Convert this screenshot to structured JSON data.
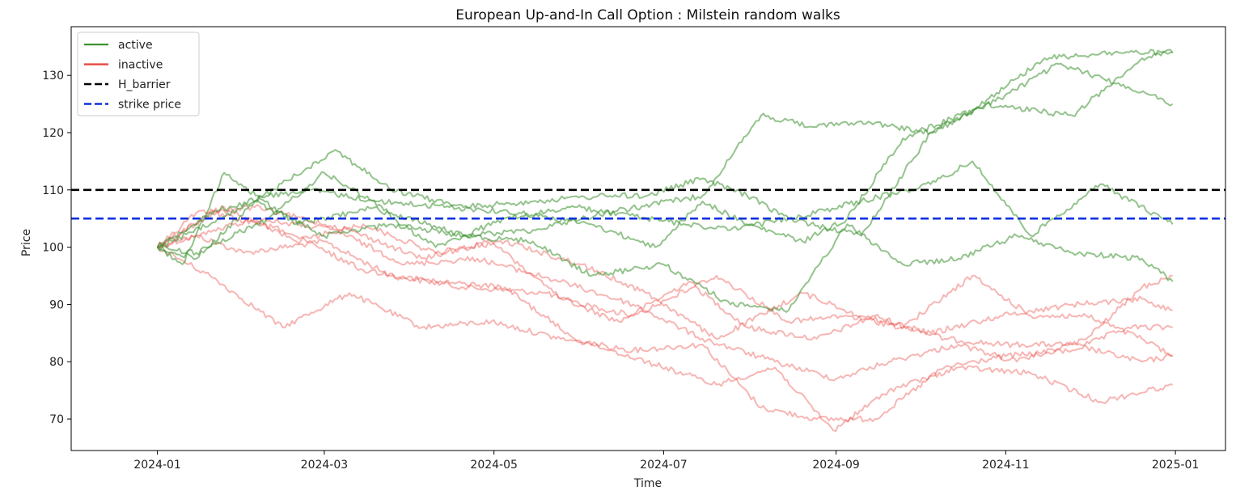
{
  "chart_data": {
    "type": "line",
    "title": "European Up-and-In Call Option : Milstein random walks",
    "xlabel": "Time",
    "ylabel": "Price",
    "xlim": [
      "2023-12-01",
      "2025-01-19"
    ],
    "ylim": [
      64.5,
      138.5
    ],
    "x_ticks": [
      "2024-01",
      "2024-03",
      "2024-05",
      "2024-07",
      "2024-09",
      "2024-11",
      "2025-01"
    ],
    "y_ticks": [
      70,
      80,
      90,
      100,
      110,
      120,
      130
    ],
    "grid": false,
    "legend_position": "top-left",
    "colors": {
      "active": "#3d9130",
      "inactive": "#e8403a",
      "barrier": "#000000",
      "strike": "#0a30e0"
    },
    "legend": [
      {
        "label": "active",
        "color": "#3d9130",
        "dash": false
      },
      {
        "label": "inactive",
        "color": "#e8403a",
        "dash": false
      },
      {
        "label": "H_barrier",
        "color": "#000000",
        "dash": true
      },
      {
        "label": "strike price",
        "color": "#0a30e0",
        "dash": true
      }
    ],
    "barrier": 110,
    "strike": 105,
    "series": [
      {
        "status": "active",
        "x": [
          "2024-01-01",
          "2024-01-20",
          "2024-02-10",
          "2024-02-25",
          "2024-03-20",
          "2024-04-15",
          "2024-05-10",
          "2024-06-05",
          "2024-06-28",
          "2024-07-15",
          "2024-07-31",
          "2024-08-20",
          "2024-09-05",
          "2024-09-25",
          "2024-10-20",
          "2024-11-15",
          "2024-12-10",
          "2024-12-31"
        ],
        "y": [
          100,
          106,
          109,
          110,
          108,
          107,
          106,
          104,
          100,
          108,
          104,
          101,
          105,
          119,
          124,
          133,
          134,
          134
        ]
      },
      {
        "status": "active",
        "x": [
          "2024-01-01",
          "2024-01-20",
          "2024-02-05",
          "2024-03-05",
          "2024-03-25",
          "2024-04-20",
          "2024-05-15",
          "2024-06-10",
          "2024-06-25",
          "2024-07-15",
          "2024-07-31",
          "2024-08-15",
          "2024-09-10",
          "2024-10-05",
          "2024-10-30",
          "2024-11-20",
          "2024-12-15",
          "2024-12-31"
        ],
        "y": [
          100,
          104,
          108,
          117,
          110,
          107,
          108,
          109,
          109,
          112,
          109,
          105,
          102,
          120,
          126,
          132,
          128,
          125
        ]
      },
      {
        "status": "active",
        "x": [
          "2024-01-01",
          "2024-01-15",
          "2024-02-10",
          "2024-03-01",
          "2024-03-25",
          "2024-04-20",
          "2024-05-15",
          "2024-06-10",
          "2024-07-15",
          "2024-08-05",
          "2024-08-25",
          "2024-09-10",
          "2024-10-05",
          "2024-10-25",
          "2024-11-25",
          "2024-12-20",
          "2024-12-31"
        ],
        "y": [
          100,
          99,
          105,
          113,
          106,
          102,
          103,
          106,
          109,
          123,
          121,
          122,
          120,
          125,
          123,
          133,
          134
        ]
      },
      {
        "status": "active",
        "x": [
          "2024-01-01",
          "2024-01-10",
          "2024-01-25",
          "2024-02-20",
          "2024-03-20",
          "2024-04-10",
          "2024-05-05",
          "2024-05-30",
          "2024-06-25",
          "2024-07-25",
          "2024-08-15",
          "2024-09-10",
          "2024-10-05",
          "2024-10-20",
          "2024-11-10",
          "2024-12-05",
          "2024-12-31"
        ],
        "y": [
          100,
          97,
          113,
          104,
          107,
          100,
          105,
          107,
          105,
          103,
          105,
          108,
          111,
          115,
          102,
          111,
          104
        ]
      },
      {
        "status": "active",
        "x": [
          "2024-01-01",
          "2024-01-15",
          "2024-02-05",
          "2024-03-01",
          "2024-03-25",
          "2024-04-20",
          "2024-05-15",
          "2024-06-05",
          "2024-07-01",
          "2024-07-25",
          "2024-08-15",
          "2024-09-05",
          "2024-09-25",
          "2024-10-15",
          "2024-11-05",
          "2024-11-25",
          "2024-12-20",
          "2024-12-31"
        ],
        "y": [
          100,
          98,
          108,
          102,
          104,
          102,
          101,
          95,
          97,
          90,
          89,
          104,
          97,
          98,
          102,
          99,
          98,
          94
        ]
      },
      {
        "status": "inactive",
        "x": [
          "2024-01-01",
          "2024-01-15",
          "2024-02-01",
          "2024-03-01",
          "2024-03-25",
          "2024-04-20",
          "2024-05-20",
          "2024-06-15",
          "2024-07-10",
          "2024-07-31",
          "2024-08-25",
          "2024-09-15",
          "2024-10-10",
          "2024-10-31",
          "2024-11-25",
          "2024-12-20",
          "2024-12-31"
        ],
        "y": [
          100,
          102,
          99,
          101,
          95,
          93,
          92,
          87,
          94,
          86,
          84,
          88,
          84,
          83,
          83,
          80,
          81
        ]
      },
      {
        "status": "inactive",
        "x": [
          "2024-01-01",
          "2024-01-20",
          "2024-02-15",
          "2024-03-10",
          "2024-04-05",
          "2024-04-30",
          "2024-05-25",
          "2024-06-20",
          "2024-07-15",
          "2024-08-05",
          "2024-08-25",
          "2024-09-15",
          "2024-10-10",
          "2024-11-01",
          "2024-11-25",
          "2024-12-15",
          "2024-12-31"
        ],
        "y": [
          100,
          95,
          86,
          92,
          86,
          87,
          84,
          82,
          83,
          72,
          70,
          70,
          79,
          81,
          82,
          86,
          86
        ]
      },
      {
        "status": "inactive",
        "x": [
          "2024-01-01",
          "2024-01-15",
          "2024-02-05",
          "2024-03-05",
          "2024-03-30",
          "2024-04-25",
          "2024-05-25",
          "2024-06-20",
          "2024-07-15",
          "2024-08-10",
          "2024-09-01",
          "2024-09-20",
          "2024-10-15",
          "2024-11-05",
          "2024-11-30",
          "2024-12-20",
          "2024-12-31"
        ],
        "y": [
          100,
          102,
          105,
          103,
          97,
          98,
          94,
          90,
          84,
          80,
          77,
          80,
          83,
          80,
          84,
          93,
          95
        ]
      },
      {
        "status": "inactive",
        "x": [
          "2024-01-01",
          "2024-01-20",
          "2024-02-15",
          "2024-03-15",
          "2024-04-10",
          "2024-05-05",
          "2024-05-30",
          "2024-06-25",
          "2024-07-20",
          "2024-08-10",
          "2024-08-31",
          "2024-09-20",
          "2024-10-15",
          "2024-11-10",
          "2024-12-05",
          "2024-12-31"
        ],
        "y": [
          100,
          106,
          103,
          96,
          94,
          93,
          84,
          80,
          76,
          79,
          68,
          75,
          79,
          78,
          73,
          76
        ]
      },
      {
        "status": "inactive",
        "x": [
          "2024-01-01",
          "2024-01-15",
          "2024-02-05",
          "2024-03-10",
          "2024-04-05",
          "2024-04-30",
          "2024-05-25",
          "2024-06-20",
          "2024-07-20",
          "2024-08-15",
          "2024-09-05",
          "2024-09-25",
          "2024-10-20",
          "2024-11-10",
          "2024-11-30",
          "2024-12-20",
          "2024-12-31"
        ],
        "y": [
          100,
          106,
          107,
          103,
          98,
          101,
          91,
          88,
          95,
          87,
          88,
          86,
          95,
          88,
          88,
          84,
          81
        ]
      },
      {
        "status": "inactive",
        "x": [
          "2024-01-01",
          "2024-01-25",
          "2024-02-20",
          "2024-03-15",
          "2024-04-10",
          "2024-05-05",
          "2024-06-01",
          "2024-06-25",
          "2024-07-20",
          "2024-08-20",
          "2024-09-10",
          "2024-10-05",
          "2024-10-30",
          "2024-11-25",
          "2024-12-20",
          "2024-12-31"
        ],
        "y": [
          100,
          107,
          101,
          104,
          99,
          101,
          97,
          92,
          84,
          92,
          88,
          85,
          88,
          90,
          91,
          89
        ]
      }
    ]
  }
}
